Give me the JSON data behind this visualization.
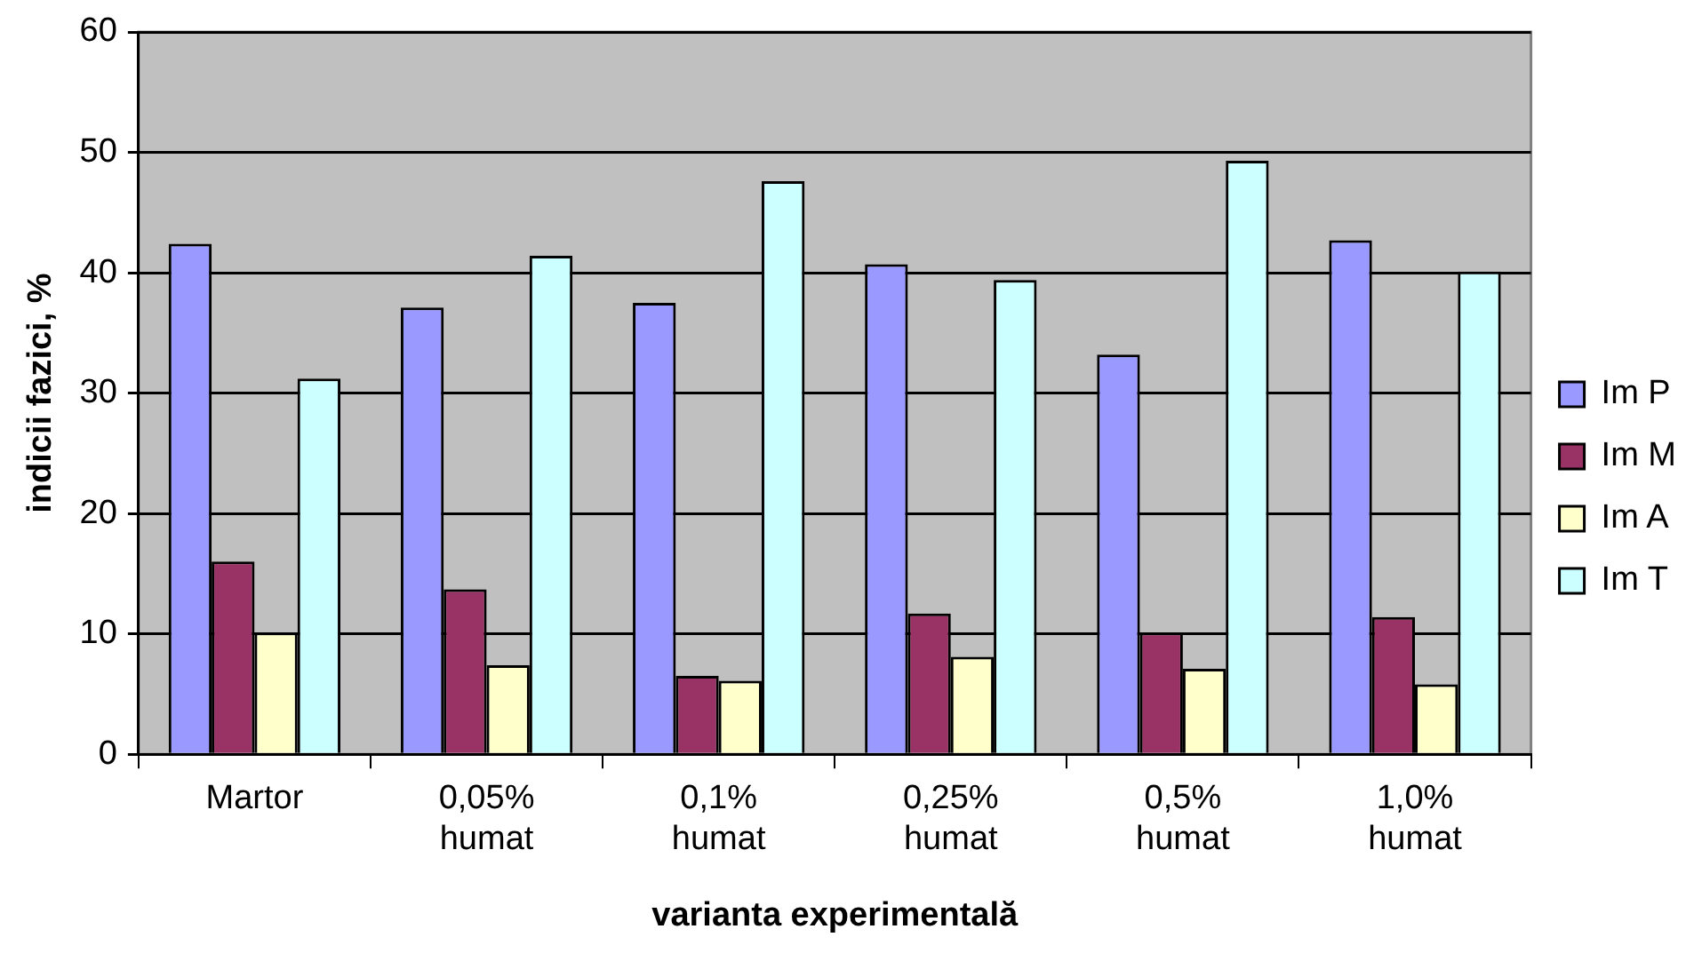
{
  "chart_data": {
    "type": "bar",
    "xlabel": "varianta experimentală",
    "ylabel": "indicii fazici, %",
    "categories": [
      "Martor",
      "0,05% humat",
      "0,1% humat",
      "0,25% humat",
      "0,5% humat",
      "1,0% humat"
    ],
    "series": [
      {
        "name": "Im P",
        "color": "#9999ff",
        "values": [
          42.4,
          37.1,
          37.5,
          40.7,
          33.2,
          42.7
        ]
      },
      {
        "name": "Im M",
        "color": "#993366",
        "values": [
          16.0,
          13.7,
          6.5,
          11.7,
          10.1,
          11.4
        ]
      },
      {
        "name": "Im A",
        "color": "#ffffcc",
        "values": [
          10.1,
          7.4,
          6.1,
          8.1,
          7.1,
          5.8
        ]
      },
      {
        "name": "Im T",
        "color": "#ccffff",
        "values": [
          31.2,
          41.4,
          47.6,
          39.4,
          49.3,
          40.1
        ]
      }
    ],
    "ylim": [
      0,
      60
    ],
    "yticks": [
      0,
      10,
      20,
      30,
      40,
      50,
      60
    ],
    "grid": "y",
    "legend": "right"
  }
}
